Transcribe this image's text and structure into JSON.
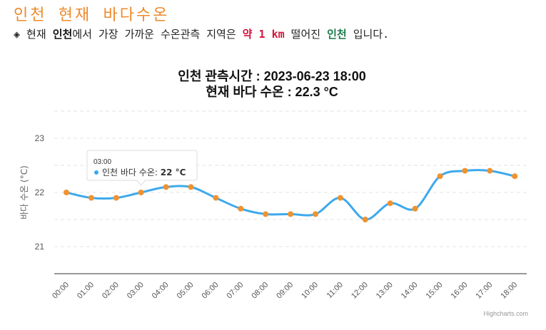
{
  "header": {
    "title": "인천 현재 바다수온",
    "info": {
      "symbol": "◈",
      "p1": " 현재 ",
      "city": "인천",
      "p2": "에서 가장 가까운 수온관측 지역은 ",
      "distance": "약 1 km",
      "p3": " 떨어진 ",
      "station": "인천",
      "p4": " 입니다."
    }
  },
  "chart_data": {
    "type": "line",
    "title_line1": "인천 관측시간 : 2023-06-23 18:00",
    "title_line2": "현재 바다 수온 : 22.3 °C",
    "ylabel": "바다 수온 (°C)",
    "xlabel": "",
    "categories": [
      "00:00",
      "01:00",
      "02:00",
      "03:00",
      "04:00",
      "05:00",
      "06:00",
      "07:00",
      "08:00",
      "09:00",
      "10:00",
      "11:00",
      "12:00",
      "13:00",
      "14:00",
      "15:00",
      "16:00",
      "17:00",
      "18:00"
    ],
    "series": [
      {
        "name": "인천 바다 수온",
        "values": [
          22.0,
          21.9,
          21.9,
          22.0,
          22.1,
          22.1,
          21.9,
          21.7,
          21.6,
          21.6,
          21.6,
          21.9,
          21.5,
          21.8,
          21.7,
          22.3,
          22.4,
          22.4,
          22.3
        ]
      }
    ],
    "yticks": [
      21,
      22,
      23
    ],
    "ylim": [
      20.5,
      23.5
    ],
    "grid": true,
    "line_color": "#3ea9ec",
    "marker_color": "#f0922f",
    "tooltip": {
      "x": "03:00",
      "series": "인천 바다 수온",
      "value": "22 °C",
      "index": 3
    },
    "credit": "Highcharts.com"
  }
}
